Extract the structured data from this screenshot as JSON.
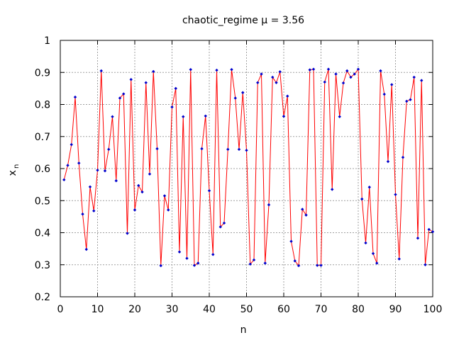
{
  "chart_data": {
    "type": "line",
    "title": "chaotic_regime  μ = 3.56",
    "xlabel": "n",
    "ylabel": {
      "base": "x",
      "subscript": "n"
    },
    "xlim": [
      0,
      100
    ],
    "ylim": [
      0.2,
      1.0
    ],
    "xticks": [
      0,
      10,
      20,
      30,
      40,
      50,
      60,
      70,
      80,
      90,
      100
    ],
    "yticks": [
      0.2,
      0.3,
      0.4,
      0.5,
      0.6,
      0.7,
      0.8,
      0.9,
      1.0
    ],
    "xtick_labels": [
      "0",
      "10",
      "20",
      "30",
      "40",
      "50",
      "60",
      "70",
      "80",
      "90",
      "100"
    ],
    "ytick_labels": [
      "0.2",
      "0.3",
      "0.4",
      "0.5",
      "0.6",
      "0.7",
      "0.8",
      "0.9",
      "1"
    ],
    "grid": true,
    "legend": "none",
    "line_color": "#ff0000",
    "marker_color": "#0000cc",
    "series": [
      {
        "x": [
          1,
          2,
          3,
          4,
          5,
          6,
          7,
          8,
          9,
          10,
          11,
          12,
          13,
          14,
          15,
          16,
          17,
          18,
          19,
          20,
          21,
          22,
          23,
          24,
          25,
          26,
          27,
          28,
          29,
          30,
          31,
          32,
          33,
          34,
          35,
          36,
          37,
          38,
          39,
          40,
          41,
          42,
          43,
          44,
          45,
          46,
          47,
          48,
          49,
          50,
          51,
          52,
          53,
          54,
          55,
          56,
          57,
          58,
          59,
          60,
          61,
          62,
          63,
          64,
          65,
          66,
          67,
          68,
          69,
          70,
          71,
          72,
          73,
          74,
          75,
          76,
          77,
          78,
          79,
          80,
          81,
          82,
          83,
          84,
          85,
          86,
          87,
          88,
          89,
          90,
          91,
          92,
          93,
          94,
          95,
          96,
          97,
          98,
          99,
          100
        ],
        "values": [
          0.565,
          0.61,
          0.675,
          0.823,
          0.617,
          0.458,
          0.348,
          0.543,
          0.468,
          0.595,
          0.905,
          0.593,
          0.66,
          0.762,
          0.562,
          0.82,
          0.833,
          0.398,
          0.878,
          0.471,
          0.547,
          0.527,
          0.868,
          0.583,
          0.903,
          0.662,
          0.297,
          0.515,
          0.471,
          0.792,
          0.85,
          0.34,
          0.762,
          0.32,
          0.909,
          0.298,
          0.305,
          0.662,
          0.764,
          0.531,
          0.332,
          0.907,
          0.418,
          0.43,
          0.66,
          0.909,
          0.82,
          0.66,
          0.837,
          0.657,
          0.302,
          0.315,
          0.868,
          0.895,
          0.305,
          0.487,
          0.885,
          0.868,
          0.902,
          0.763,
          0.826,
          0.373,
          0.312,
          0.297,
          0.473,
          0.455,
          0.908,
          0.91,
          0.298,
          0.298,
          0.87,
          0.91,
          0.535,
          0.895,
          0.762,
          0.867,
          0.905,
          0.885,
          0.895,
          0.91,
          0.505,
          0.368,
          0.542,
          0.335,
          0.305,
          0.905,
          0.832,
          0.622,
          0.862,
          0.519,
          0.318,
          0.635,
          0.81,
          0.815,
          0.885,
          0.383,
          0.875,
          0.3,
          0.41,
          0.403
        ]
      }
    ]
  }
}
